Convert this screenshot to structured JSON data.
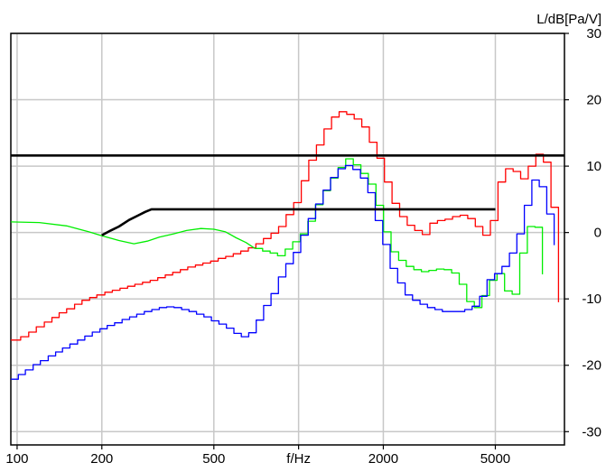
{
  "chart_data": {
    "type": "line",
    "x_scale": "log",
    "xlim": [
      95,
      8800
    ],
    "ylim": [
      -32,
      30
    ],
    "xlabel": "f/Hz",
    "ylabel": "L/dB[Pa/V]",
    "x_ticks": [
      100,
      200,
      500,
      1000,
      2000,
      5000
    ],
    "x_tick_labels": [
      "100",
      "200",
      "500",
      "f/Hz",
      "2000",
      "5000"
    ],
    "y_ticks": [
      30,
      20,
      10,
      0,
      -10,
      -20,
      -30
    ],
    "y_tick_labels": [
      "30",
      "20",
      "10",
      "0",
      "-10",
      "-20",
      "-30"
    ],
    "grid": true,
    "series": [
      {
        "color": "#ff0000",
        "style": "step",
        "width": 1.3,
        "points": [
          [
            95,
            -16.2
          ],
          [
            103,
            -15.7
          ],
          [
            110,
            -15
          ],
          [
            117,
            -14.2
          ],
          [
            125,
            -13.5
          ],
          [
            133,
            -12.8
          ],
          [
            141,
            -12.1
          ],
          [
            150,
            -11.5
          ],
          [
            160,
            -10.8
          ],
          [
            170,
            -10.2
          ],
          [
            181,
            -9.8
          ],
          [
            192,
            -9.4
          ],
          [
            205,
            -9
          ],
          [
            218,
            -8.7
          ],
          [
            232,
            -8.4
          ],
          [
            247,
            -8.1
          ],
          [
            262,
            -7.8
          ],
          [
            279,
            -7.5
          ],
          [
            297,
            -7.2
          ],
          [
            316,
            -6.8
          ],
          [
            336,
            -6.4
          ],
          [
            357,
            -6
          ],
          [
            380,
            -5.6
          ],
          [
            404,
            -5.2
          ],
          [
            430,
            -4.9
          ],
          [
            457,
            -4.6
          ],
          [
            487,
            -4.3
          ],
          [
            518,
            -3.9
          ],
          [
            551,
            -3.6
          ],
          [
            586,
            -3.2
          ],
          [
            623,
            -2.8
          ],
          [
            663,
            -2.3
          ],
          [
            705,
            -1.7
          ],
          [
            750,
            -0.9
          ],
          [
            798,
            -0.1
          ],
          [
            849,
            0.9
          ],
          [
            903,
            2.7
          ],
          [
            961,
            4.5
          ],
          [
            1022,
            7.8
          ],
          [
            1087,
            10.9
          ],
          [
            1157,
            13.2
          ],
          [
            1231,
            15.6
          ],
          [
            1309,
            17.4
          ],
          [
            1393,
            18.2
          ],
          [
            1482,
            17.8
          ],
          [
            1576,
            17.1
          ],
          [
            1677,
            15.9
          ],
          [
            1784,
            13.6
          ],
          [
            1898,
            11.2
          ],
          [
            2019,
            7.6
          ],
          [
            2148,
            4.4
          ],
          [
            2285,
            2.4
          ],
          [
            2431,
            1.1
          ],
          [
            2586,
            0.3
          ],
          [
            2751,
            -0.3
          ],
          [
            2927,
            1.4
          ],
          [
            3114,
            1.8
          ],
          [
            3313,
            2
          ],
          [
            3524,
            2.4
          ],
          [
            3749,
            2.6
          ],
          [
            3989,
            2.1
          ],
          [
            4243,
            0.9
          ],
          [
            4514,
            -0.4
          ],
          [
            4803,
            1.8
          ],
          [
            5109,
            7.6
          ],
          [
            5436,
            9.6
          ],
          [
            5783,
            9.2
          ],
          [
            6152,
            8.1
          ],
          [
            6545,
            10
          ],
          [
            6963,
            11.8
          ],
          [
            7408,
            10.6
          ],
          [
            7881,
            3.8
          ],
          [
            8384,
            -10.5
          ]
        ]
      },
      {
        "color": "#00ee00",
        "style": "smooth",
        "width": 1.3,
        "points": [
          [
            95,
            1.6
          ],
          [
            120,
            1.5
          ],
          [
            150,
            1
          ],
          [
            180,
            0.1
          ],
          [
            200,
            -0.5
          ],
          [
            230,
            -1.2
          ],
          [
            260,
            -1.7
          ],
          [
            290,
            -1.3
          ],
          [
            320,
            -0.7
          ],
          [
            360,
            -0.2
          ],
          [
            400,
            0.3
          ],
          [
            450,
            0.6
          ],
          [
            500,
            0.5
          ],
          [
            550,
            0.1
          ],
          [
            600,
            -0.8
          ],
          [
            650,
            -1.5
          ],
          [
            700,
            -2.4
          ]
        ]
      },
      {
        "color": "#00ee00",
        "style": "step",
        "width": 1.3,
        "points": [
          [
            700,
            -2.4
          ],
          [
            745,
            -2.8
          ],
          [
            792,
            -3.1
          ],
          [
            842,
            -3.5
          ],
          [
            896,
            -2.5
          ],
          [
            953,
            -1.4
          ],
          [
            1014,
            -0.2
          ],
          [
            1079,
            1.7
          ],
          [
            1148,
            4.2
          ],
          [
            1221,
            6.3
          ],
          [
            1299,
            8.2
          ],
          [
            1382,
            9.8
          ],
          [
            1470,
            11.1
          ],
          [
            1564,
            10.2
          ],
          [
            1664,
            8.9
          ],
          [
            1770,
            7.3
          ],
          [
            1883,
            4.1
          ],
          [
            2003,
            0.1
          ],
          [
            2131,
            -2.9
          ],
          [
            2267,
            -4.2
          ],
          [
            2412,
            -5.1
          ],
          [
            2566,
            -5.6
          ],
          [
            2730,
            -5.9
          ],
          [
            2904,
            -5.7
          ],
          [
            3090,
            -5.5
          ],
          [
            3287,
            -5.6
          ],
          [
            3497,
            -6.1
          ],
          [
            3720,
            -7.8
          ],
          [
            3958,
            -10.4
          ],
          [
            4210,
            -11.3
          ],
          [
            4479,
            -9.5
          ],
          [
            4765,
            -7.2
          ],
          [
            5070,
            -6.2
          ],
          [
            5393,
            -8.8
          ],
          [
            5738,
            -9.3
          ],
          [
            6104,
            -3.1
          ],
          [
            6494,
            0.9
          ],
          [
            6909,
            0.8
          ],
          [
            7350,
            -6.3
          ]
        ]
      },
      {
        "color": "#0000ff",
        "style": "step",
        "width": 1.3,
        "points": [
          [
            95,
            -22.1
          ],
          [
            101,
            -21.4
          ],
          [
            107,
            -20.7
          ],
          [
            114,
            -19.9
          ],
          [
            121,
            -19.3
          ],
          [
            129,
            -18.6
          ],
          [
            137,
            -18
          ],
          [
            145,
            -17.4
          ],
          [
            154,
            -16.8
          ],
          [
            164,
            -16.2
          ],
          [
            174,
            -15.6
          ],
          [
            185,
            -15
          ],
          [
            197,
            -14.5
          ],
          [
            209,
            -14
          ],
          [
            222,
            -13.6
          ],
          [
            236,
            -13.1
          ],
          [
            251,
            -12.7
          ],
          [
            266,
            -12.3
          ],
          [
            283,
            -11.9
          ],
          [
            301,
            -11.6
          ],
          [
            320,
            -11.3
          ],
          [
            340,
            -11.2
          ],
          [
            361,
            -11.3
          ],
          [
            384,
            -11.6
          ],
          [
            408,
            -11.9
          ],
          [
            434,
            -12.3
          ],
          [
            461,
            -12.7
          ],
          [
            490,
            -13.3
          ],
          [
            521,
            -13.8
          ],
          [
            554,
            -14.4
          ],
          [
            589,
            -15.2
          ],
          [
            626,
            -15.7
          ],
          [
            665,
            -15.1
          ],
          [
            707,
            -13.2
          ],
          [
            751,
            -11
          ],
          [
            798,
            -9.2
          ],
          [
            848,
            -6.7
          ],
          [
            901,
            -4.7
          ],
          [
            958,
            -3
          ],
          [
            1018,
            -0.4
          ],
          [
            1082,
            2.1
          ],
          [
            1150,
            4.3
          ],
          [
            1222,
            6.4
          ],
          [
            1299,
            8.3
          ],
          [
            1381,
            9.6
          ],
          [
            1467,
            10.1
          ],
          [
            1559,
            9.5
          ],
          [
            1658,
            8.2
          ],
          [
            1762,
            6
          ],
          [
            1872,
            1.8
          ],
          [
            1990,
            -1.8
          ],
          [
            2115,
            -5.4
          ],
          [
            2248,
            -7.6
          ],
          [
            2390,
            -9.4
          ],
          [
            2540,
            -10.2
          ],
          [
            2700,
            -10.8
          ],
          [
            2869,
            -11.3
          ],
          [
            3050,
            -11.6
          ],
          [
            3241,
            -11.9
          ],
          [
            3445,
            -11.9
          ],
          [
            3662,
            -11.9
          ],
          [
            3892,
            -11.6
          ],
          [
            4137,
            -11.1
          ],
          [
            4397,
            -9.6
          ],
          [
            4673,
            -7.1
          ],
          [
            4967,
            -6.2
          ],
          [
            5279,
            -5.1
          ],
          [
            5611,
            -3.1
          ],
          [
            5964,
            -0.2
          ],
          [
            6339,
            4.1
          ],
          [
            6738,
            7.9
          ],
          [
            7162,
            6.9
          ],
          [
            7612,
            2.8
          ],
          [
            8090,
            -1.9
          ]
        ]
      },
      {
        "color": "#000000",
        "style": "smooth",
        "width": 2.6,
        "points": [
          [
            200,
            -0.4
          ],
          [
            215,
            0.3
          ],
          [
            230,
            0.9
          ],
          [
            250,
            1.9
          ],
          [
            270,
            2.6
          ],
          [
            285,
            3.1
          ],
          [
            300,
            3.5
          ],
          [
            400,
            3.5
          ],
          [
            1000,
            3.5
          ],
          [
            2000,
            3.5
          ],
          [
            3000,
            3.5
          ],
          [
            4000,
            3.5
          ],
          [
            5000,
            3.5
          ]
        ]
      },
      {
        "color": "#000000",
        "style": "smooth",
        "width": 2.6,
        "points": [
          [
            95,
            11.6
          ],
          [
            8800,
            11.6
          ]
        ]
      }
    ]
  }
}
